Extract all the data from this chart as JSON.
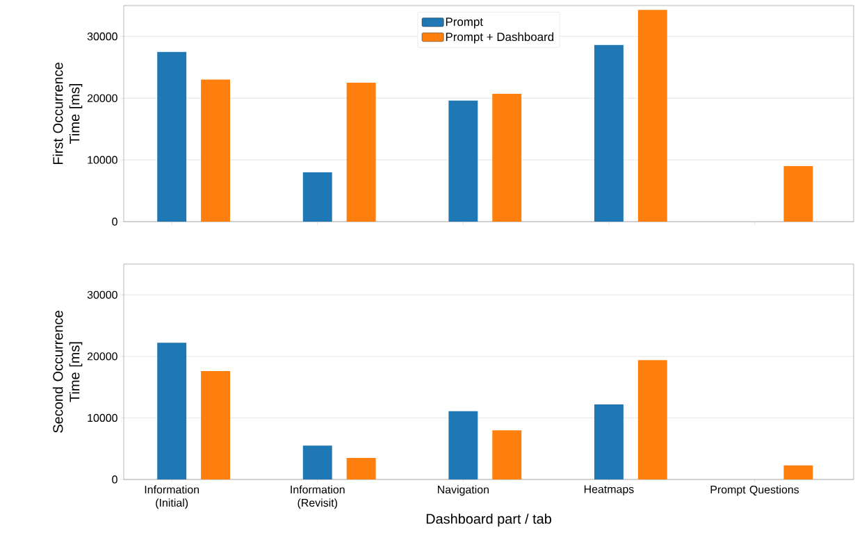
{
  "chart_data": [
    {
      "type": "bar",
      "ylabel": "First Occurrence Time [ms]",
      "categories": [
        null,
        null,
        null,
        null,
        null
      ],
      "series": [
        {
          "name": "Prompt",
          "color": "#1f77b4",
          "values": [
            27500,
            8000,
            19600,
            28600,
            null
          ]
        },
        {
          "name": "Prompt + Dashboard",
          "color": "#ff7f0e",
          "values": [
            23000,
            22500,
            20700,
            34300,
            9000
          ]
        }
      ],
      "ylim": [
        0,
        35000
      ],
      "yticks": [
        0,
        10000,
        20000,
        30000
      ],
      "grid": "y",
      "legend": "top",
      "tick_labels": "y"
    },
    {
      "type": "bar",
      "xlabel": "Dashboard part / tab",
      "ylabel": "Second Occurrence Time [ms]",
      "categories": [
        "Information (Initial)",
        "Information (Revisit)",
        "Navigation",
        "Heatmaps",
        "Prompt Questions"
      ],
      "series": [
        {
          "color": "#1f77b4",
          "values": [
            22200,
            5500,
            11100,
            12200,
            null
          ]
        },
        {
          "color": "#ff7f0e",
          "values": [
            17600,
            3500,
            8000,
            19400,
            2300
          ]
        }
      ],
      "ylim": [
        0,
        35000
      ],
      "yticks": [
        0,
        10000,
        20000,
        30000
      ],
      "grid": "y"
    }
  ]
}
